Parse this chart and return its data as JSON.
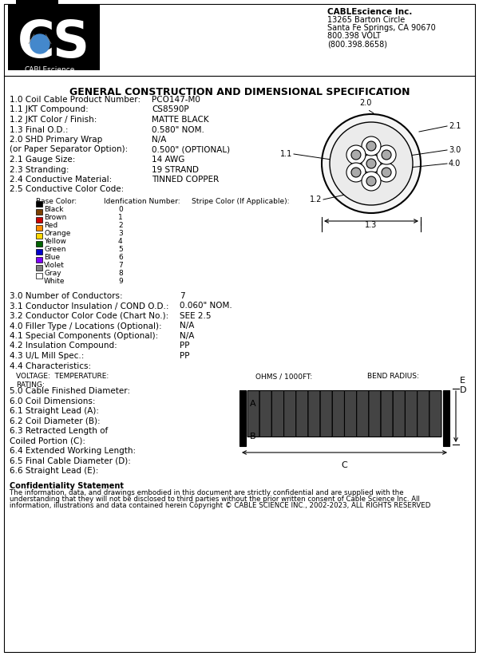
{
  "bg_color": "#ffffff",
  "title": "GENERAL CONSTRUCTION AND DIMENSIONAL SPECIFICATION",
  "company_name": "CABLEscience Inc.",
  "company_address_lines": [
    "13265 Barton Circle",
    "Santa Fe Springs, CA 90670",
    "800.398 VOLT",
    "(800.398.8658)"
  ],
  "left_specs": [
    [
      "1.0 Coil Cable Product Number:",
      "PCO147-M0",
      false
    ],
    [
      "1.1 JKT Compound:",
      "CS8590P",
      false
    ],
    [
      "1.2 JKT Color / Finish:",
      "MATTE BLACK",
      false
    ],
    [
      "1.3 Final O.D.:",
      "0.580\" NOM.",
      false
    ],
    [
      "2.0 SHD Primary Wrap",
      "N/A",
      false
    ],
    [
      "(or Paper Separator Option):",
      "0.500\" (OPTIONAL)",
      false
    ],
    [
      "2.1 Gauge Size:",
      "14 AWG",
      false
    ],
    [
      "2.3 Stranding:",
      "19 STRAND",
      false
    ],
    [
      "2.4 Conductive Material:",
      "TINNED COPPER",
      false
    ],
    [
      "2.5 Conductive Color Code:",
      "",
      false
    ]
  ],
  "color_table_rows": [
    [
      "Black",
      "0"
    ],
    [
      "Brown",
      "1"
    ],
    [
      "Red",
      "2"
    ],
    [
      "Orange",
      "3"
    ],
    [
      "Yellow",
      "4"
    ],
    [
      "Green",
      "5"
    ],
    [
      "Blue",
      "6"
    ],
    [
      "Violet",
      "7"
    ],
    [
      "Gray",
      "8"
    ],
    [
      "White",
      "9"
    ]
  ],
  "bottom_specs": [
    [
      "3.0 Number of Conductors:",
      "7"
    ],
    [
      "3.1 Conductor Insulation / COND O.D.:",
      "0.060\" NOM."
    ],
    [
      "3.2 Conductor Color Code (Chart No.):",
      "SEE 2.5"
    ],
    [
      "4.0 Filler Type / Locations (Optional):",
      "N/A"
    ],
    [
      "4.1 Special Components (Optional):",
      "N/A"
    ],
    [
      "4.2 Insulation Compound:",
      "PP"
    ],
    [
      "4.3 U/L Mill Spec.:",
      "PP"
    ],
    [
      "4.4 Characteristics:",
      ""
    ]
  ],
  "cable_dims_specs": [
    "5.0 Cable Finished Diameter:",
    "6.0 Coil Dimensions:",
    "6.1 Straight Lead (A):",
    "6.2 Coil Diameter (B):",
    "6.3 Retracted Length of",
    "Coiled Portion (C):",
    "6.4 Extended Working Length:",
    "6.5 Final Cable Diameter (D):",
    "6.6 Straight Lead (E):"
  ],
  "confidentiality_title": "Confidentiality Statement",
  "confidentiality_lines": [
    "The information, data, and drawings embodied in this document are strictly confidential and are supplied with the",
    "understanding that they will not be disclosed to third parties without the prior written consent of Cable Science Inc. All",
    "information, illustrations and data contained herein Copyright © CABLE SCIENCE INC., 2002-2023, ALL RIGHTS RESERVED"
  ]
}
